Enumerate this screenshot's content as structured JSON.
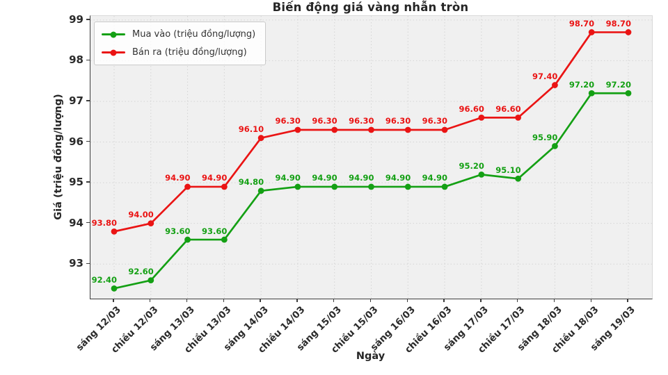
{
  "chart_data": {
    "type": "line",
    "title": "Biến động giá vàng nhẫn tròn",
    "xlabel": "Ngày",
    "ylabel": "Giá (triệu đồng/lượng)",
    "categories": [
      "sáng 12/03",
      "chiều 12/03",
      "sáng 13/03",
      "chiều 13/03",
      "sáng 14/03",
      "chiều 14/03",
      "sáng 15/03",
      "chiều 15/03",
      "sáng 16/03",
      "chiều 16/03",
      "sáng 17/03",
      "chiều 17/03",
      "sáng 18/03",
      "chiều 18/03",
      "sáng 19/03"
    ],
    "series": [
      {
        "name": "Mua vào (triệu đồng/lượng)",
        "color": "#14a014",
        "values": [
          92.4,
          92.6,
          93.6,
          93.6,
          94.8,
          94.9,
          94.9,
          94.9,
          94.9,
          94.9,
          95.2,
          95.1,
          95.9,
          97.2,
          97.2
        ]
      },
      {
        "name": "Bán ra (triệu đồng/lượng)",
        "color": "#ea1414",
        "values": [
          93.8,
          94.0,
          94.9,
          94.9,
          96.1,
          96.3,
          96.3,
          96.3,
          96.3,
          96.3,
          96.6,
          96.6,
          97.4,
          98.7,
          98.7
        ]
      }
    ],
    "yticks": [
      93,
      94,
      95,
      96,
      97,
      98,
      99
    ],
    "ylim": [
      92.15,
      99.1
    ],
    "grid": true,
    "grid_style": "dotted",
    "legend_position": "upper left",
    "point_labels": "values shown at every point, 2 decimals",
    "plot_background": "#f0f0f0",
    "grid_color": "#d4d4d4"
  }
}
